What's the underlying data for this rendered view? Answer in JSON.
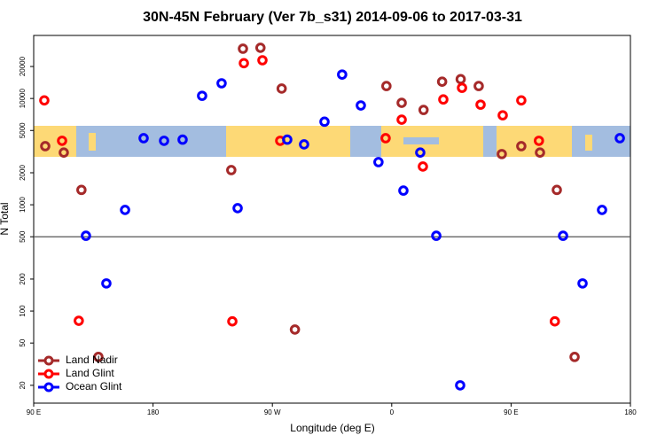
{
  "chart_data": {
    "type": "scatter",
    "title": "30N-45N February (Ver 7b_s31)   2014-09-06 to 2017-03-31",
    "x_label": "Longitude (deg E)",
    "y_label": "N Total",
    "xlim": [
      90,
      540
    ],
    "xticks": [
      {
        "value": 90,
        "label": "90 E"
      },
      180,
      {
        "value": 270,
        "label": "90 W"
      },
      {
        "value": 360,
        "label": "0"
      },
      {
        "value": 450,
        "label": "90 E"
      },
      {
        "value": 540,
        "label": "180"
      }
    ],
    "ylim": [
      13.6,
      39200
    ],
    "log_y": true,
    "yticks": [
      20,
      50,
      100,
      200,
      500,
      1000,
      2000,
      5000,
      10000,
      20000
    ],
    "reference_line": 500,
    "legend": "bottom-left",
    "series": [
      {
        "name": "Land Nadir",
        "color": "#a52a2a",
        "x": [
          98.7,
          112.7,
          126,
          138.8,
          239,
          247.8,
          261,
          277,
          287,
          356,
          367.5,
          384,
          398,
          412,
          425.6,
          443,
          457.7,
          471.8,
          484.5,
          497.9
        ],
        "values": [
          3560,
          3100,
          1380,
          37,
          2120,
          29400,
          30000,
          12400,
          67,
          13100,
          9100,
          7800,
          14400,
          15200,
          13100,
          3000,
          3560,
          3100,
          1380,
          37
        ]
      },
      {
        "name": "Land Glint",
        "color": "#ff0000",
        "x": [
          98,
          111.4,
          124,
          239.8,
          248.5,
          262.5,
          275.9,
          355.4,
          367.5,
          383.5,
          398.9,
          413,
          427,
          443.7,
          457.7,
          471,
          483
        ],
        "values": [
          9600,
          4000,
          81,
          80,
          21500,
          22900,
          4000,
          4230,
          6320,
          2290,
          9800,
          12600,
          8750,
          6950,
          9600,
          4000,
          80
        ]
      },
      {
        "name": "Ocean Glint",
        "color": "#0000ff",
        "x": [
          129.4,
          144.8,
          158.9,
          172.9,
          188.3,
          202.3,
          217,
          231.7,
          243.8,
          281.2,
          293.9,
          309.3,
          322.6,
          336.7,
          350,
          368.8,
          381.5,
          393.6,
          411.6,
          489.2,
          503.9,
          518.6,
          532
        ],
        "values": [
          511,
          182,
          894,
          4230,
          4000,
          4100,
          10600,
          13900,
          929,
          4100,
          3700,
          6050,
          16800,
          8600,
          2520,
          1360,
          3100,
          511,
          20,
          511,
          182,
          894,
          4230
        ]
      }
    ]
  }
}
